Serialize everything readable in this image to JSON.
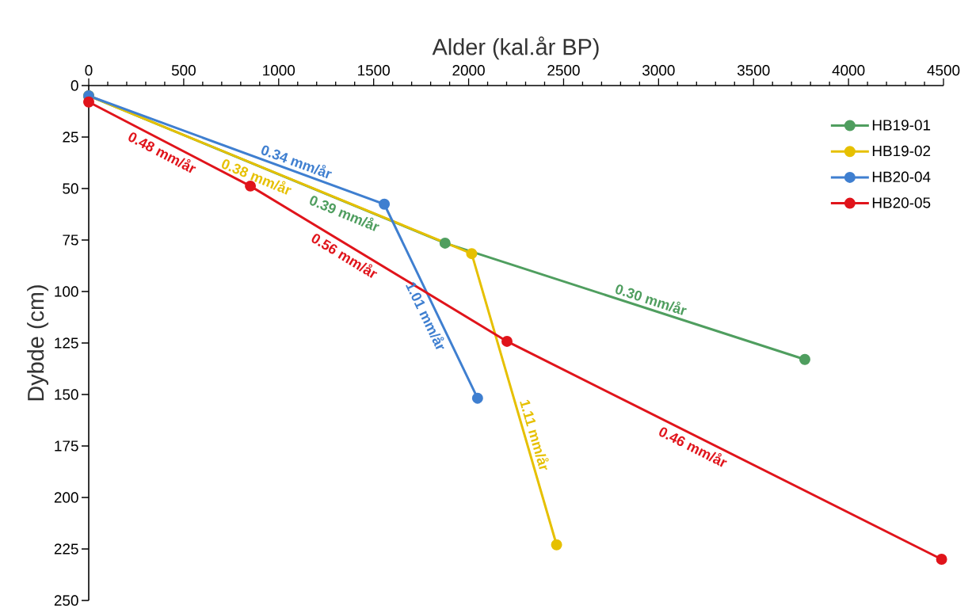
{
  "chart_data": {
    "type": "line",
    "xlabel": "Alder (kal.år BP)",
    "ylabel": "Dybde (cm)",
    "xlim": [
      0,
      4500
    ],
    "ylim": [
      250,
      0
    ],
    "xticks": [
      0,
      {
        "value": 100,
        "label": null
      },
      {
        "value": 200,
        "label": null
      },
      {
        "value": 300,
        "label": null
      },
      {
        "value": 400,
        "label": null
      },
      500,
      {
        "value": 600,
        "label": null
      },
      {
        "value": 700,
        "label": null
      },
      {
        "value": 800,
        "label": null
      },
      {
        "value": 900,
        "label": null
      },
      1000,
      {
        "value": 1100,
        "label": null
      },
      {
        "value": 1200,
        "label": null
      },
      {
        "value": 1300,
        "label": null
      },
      {
        "value": 1400,
        "label": null
      },
      1500,
      {
        "value": 1600,
        "label": null
      },
      {
        "value": 1700,
        "label": null
      },
      {
        "value": 1800,
        "label": null
      },
      {
        "value": 1900,
        "label": null
      },
      2000,
      {
        "value": 2100,
        "label": null
      },
      {
        "value": 2200,
        "label": null
      },
      {
        "value": 2300,
        "label": null
      },
      {
        "value": 2400,
        "label": null
      },
      2500,
      {
        "value": 2600,
        "label": null
      },
      {
        "value": 2700,
        "label": null
      },
      {
        "value": 2800,
        "label": null
      },
      {
        "value": 2900,
        "label": null
      },
      3000,
      {
        "value": 3100,
        "label": null
      },
      {
        "value": 3200,
        "label": null
      },
      {
        "value": 3300,
        "label": null
      },
      {
        "value": 3400,
        "label": null
      },
      3500,
      {
        "value": 3600,
        "label": null
      },
      {
        "value": 3700,
        "label": null
      },
      {
        "value": 3800,
        "label": null
      },
      {
        "value": 3900,
        "label": null
      },
      4000,
      {
        "value": 4100,
        "label": null
      },
      {
        "value": 4200,
        "label": null
      },
      {
        "value": 4300,
        "label": null
      },
      {
        "value": 4400,
        "label": null
      },
      4500
    ],
    "yticks": [
      0,
      25,
      50,
      75,
      100,
      125,
      150,
      175,
      200,
      225,
      250
    ],
    "series": [
      {
        "name": "HB19-01",
        "color": "#4f9e5f",
        "x": [
          0,
          1876,
          3770
        ],
        "values": [
          5,
          76.5,
          133
        ]
      },
      {
        "name": "HB19-02",
        "color": "#e6c000",
        "x": [
          0,
          2016,
          2463
        ],
        "values": [
          5,
          81.6,
          223
        ]
      },
      {
        "name": "HB20-04",
        "color": "#3f7fd0",
        "x": [
          0,
          1556,
          2047
        ],
        "values": [
          5,
          57.6,
          151.8
        ]
      },
      {
        "name": "HB20-05",
        "color": "#e0141b",
        "x": [
          0,
          851,
          2202,
          4490
        ],
        "values": [
          8,
          48.8,
          124.2,
          230
        ]
      }
    ],
    "annotations": [
      {
        "text": "0.34 mm/år",
        "x": 1076,
        "y": 41.4
      },
      {
        "text": "0.48 mm/år",
        "x": 413,
        "y": 27.8
      },
      {
        "text": "0.38 mm/år",
        "x": 905,
        "y": 39.39
      },
      {
        "text": "0.39 mm/år",
        "x": 1368,
        "y": 57.14
      },
      {
        "text": "0.56 mm/år",
        "x": 1376,
        "y": 78.1
      },
      {
        "text": "0.30 mm/år",
        "x": 2944,
        "y": 108.4
      },
      {
        "text": "1.01 mm/år",
        "x": 1827,
        "y": 109.6
      },
      {
        "text": "1.11 mm/år",
        "x": 2299,
        "y": 171
      },
      {
        "text": "0.46 mm/år",
        "x": 3207,
        "y": 170.7
      }
    ],
    "legend": "top right",
    "marker": "circle",
    "line_style": "solid"
  }
}
